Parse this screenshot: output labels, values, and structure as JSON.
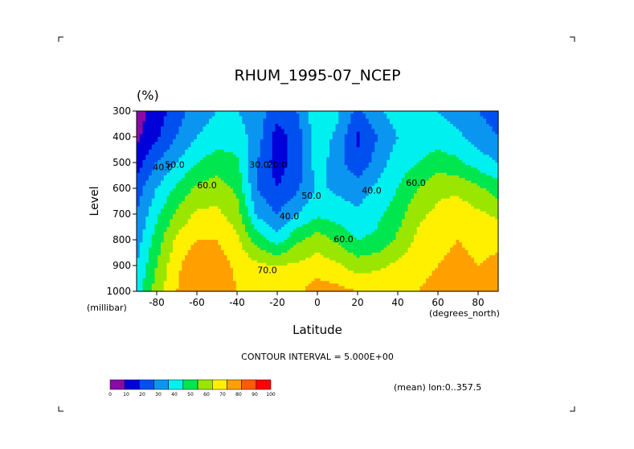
{
  "chart_data": {
    "type": "heatmap",
    "subtype": "filled-contour",
    "title": "RHUM_1995-07_NCEP",
    "unit_label": "(%)",
    "xlabel": "Latitude",
    "ylabel": "Level",
    "x_units": "(degrees_north)",
    "y_units": "(millibar)",
    "xlim": [
      -90,
      90
    ],
    "ylim": [
      1000,
      300
    ],
    "x_ticks": [
      -80,
      -60,
      -40,
      -20,
      0,
      20,
      40,
      60,
      80
    ],
    "x_tick_labels": [
      "-80",
      "-60",
      "-40",
      "-20",
      "0",
      "20",
      "40",
      "60",
      "80"
    ],
    "y_ticks": [
      300,
      400,
      500,
      600,
      700,
      800,
      900,
      1000
    ],
    "y_tick_labels": [
      "300",
      "400",
      "500",
      "600",
      "700",
      "800",
      "900",
      "1000"
    ],
    "contour_interval_text": "CONTOUR INTERVAL = 5.000E+00",
    "mean_text": "(mean) lon:0..357.5",
    "contour_labels": [
      {
        "text": "40.0",
        "lat": -77,
        "lev": 530
      },
      {
        "text": "50.0",
        "lat": -71,
        "lev": 520
      },
      {
        "text": "60.0",
        "lat": -55,
        "lev": 600
      },
      {
        "text": "70.0",
        "lat": -25,
        "lev": 930
      },
      {
        "text": "30.0",
        "lat": -29,
        "lev": 520
      },
      {
        "text": "20.0",
        "lat": -20,
        "lev": 520
      },
      {
        "text": "40.0",
        "lat": -14,
        "lev": 720
      },
      {
        "text": "50.0",
        "lat": -3,
        "lev": 640
      },
      {
        "text": "60.0",
        "lat": 13,
        "lev": 810
      },
      {
        "text": "40.0",
        "lat": 27,
        "lev": 620
      },
      {
        "text": "60.0",
        "lat": 49,
        "lev": 590
      }
    ],
    "grid": false,
    "colorbar": {
      "levels": [
        0,
        10,
        20,
        30,
        40,
        50,
        60,
        70,
        80,
        90,
        100
      ],
      "tick_labels": [
        "0",
        "10",
        "20",
        "30",
        "40",
        "50",
        "60",
        "70",
        "80",
        "90",
        "100"
      ],
      "colors": [
        "#8a0aa8",
        "#0000d8",
        "#0050f0",
        "#0a96f0",
        "#00f0f0",
        "#00e64e",
        "#9ae600",
        "#fff000",
        "#ffa000",
        "#ff5a00",
        "#ff0000"
      ]
    },
    "grid_lat": [
      -90,
      -80,
      -70,
      -60,
      -50,
      -40,
      -30,
      -20,
      -10,
      0,
      10,
      20,
      30,
      40,
      50,
      60,
      70,
      80,
      90
    ],
    "grid_lev": [
      300,
      400,
      500,
      600,
      700,
      800,
      900,
      1000
    ],
    "values": [
      [
        5,
        15,
        25,
        35,
        40,
        40,
        35,
        25,
        30,
        50,
        42,
        27,
        38,
        45,
        45,
        40,
        35,
        30,
        25
      ],
      [
        8,
        18,
        30,
        40,
        45,
        45,
        35,
        15,
        25,
        45,
        38,
        18,
        30,
        40,
        45,
        45,
        42,
        35,
        30
      ],
      [
        15,
        30,
        40,
        50,
        55,
        52,
        30,
        15,
        25,
        45,
        35,
        22,
        35,
        45,
        50,
        55,
        52,
        45,
        40
      ],
      [
        25,
        40,
        52,
        62,
        65,
        58,
        30,
        20,
        28,
        42,
        38,
        35,
        42,
        50,
        60,
        68,
        68,
        62,
        55
      ],
      [
        30,
        48,
        62,
        72,
        72,
        65,
        38,
        30,
        40,
        48,
        45,
        42,
        48,
        55,
        68,
        72,
        75,
        72,
        68
      ],
      [
        35,
        55,
        72,
        80,
        80,
        72,
        55,
        45,
        58,
        65,
        58,
        50,
        52,
        62,
        72,
        78,
        80,
        78,
        78
      ],
      [
        40,
        60,
        78,
        88,
        85,
        78,
        72,
        70,
        72,
        75,
        72,
        65,
        68,
        72,
        78,
        80,
        82,
        80,
        82
      ],
      [
        45,
        65,
        80,
        88,
        85,
        80,
        78,
        76,
        78,
        85,
        83,
        80,
        78,
        78,
        80,
        82,
        88,
        86,
        84
      ]
    ]
  }
}
